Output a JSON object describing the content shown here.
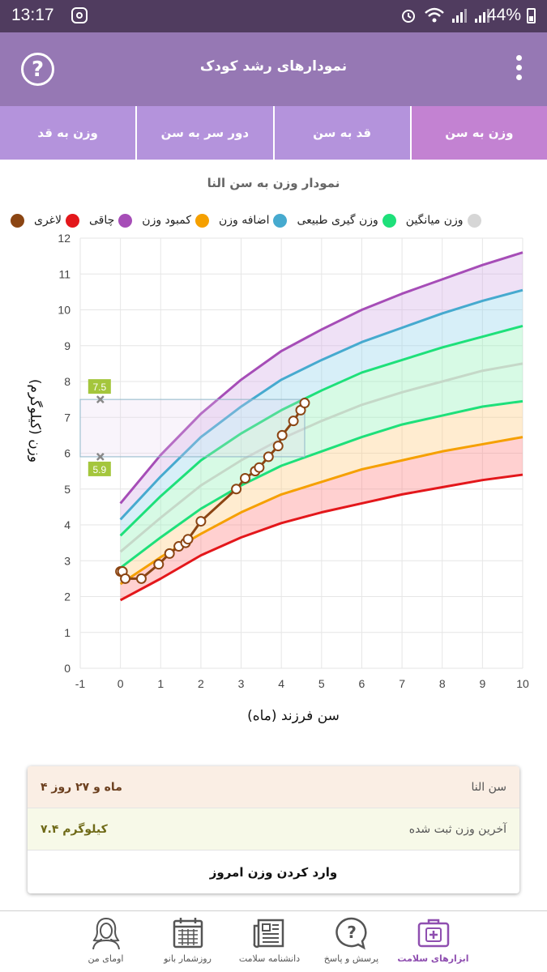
{
  "status_bar": {
    "time": "13:17",
    "battery": "44%"
  },
  "app_bar": {
    "title": "نمودارهای رشد کودک",
    "help_icon": "question-circle-icon",
    "menu_icon": "more-vert-icon"
  },
  "tabs": [
    {
      "label": "وزن به سن",
      "active": true
    },
    {
      "label": "قد به سن",
      "active": false
    },
    {
      "label": "دور سر به سن",
      "active": false
    },
    {
      "label": "وزن به قد",
      "active": false
    }
  ],
  "chart_title": "نمودار وزن به سن النا",
  "legend": [
    {
      "label": "",
      "color": "#8b4513"
    },
    {
      "label": "لاغری",
      "color": "#e3171b"
    },
    {
      "label": "چاقی",
      "color": "#a64db7"
    },
    {
      "label": "کمبود وزن",
      "color": "#f5a000"
    },
    {
      "label": "اضافه وزن",
      "color": "#46aacf"
    },
    {
      "label": "وزن گیری طبیعی",
      "color": "#1ee07a"
    },
    {
      "label": "وزن میانگین",
      "color": "#d6d6d6"
    }
  ],
  "chart_data": {
    "type": "line",
    "xlabel": "سن فرزند (ماه)",
    "ylabel": "وزن (کیلوگرم)",
    "xlim": [
      -1,
      10
    ],
    "ylim": [
      0,
      12
    ],
    "xticks": [
      -1,
      0,
      1,
      2,
      3,
      4,
      5,
      6,
      7,
      8,
      9,
      10
    ],
    "yticks": [
      0,
      1,
      2,
      3,
      4,
      5,
      6,
      7,
      8,
      9,
      10,
      11,
      12
    ],
    "grid": true,
    "x": [
      0,
      1,
      2,
      3,
      4,
      5,
      6,
      7,
      8,
      9,
      10
    ],
    "series": [
      {
        "name": "لاغری",
        "color": "#e3171b",
        "values": [
          1.9,
          2.5,
          3.15,
          3.65,
          4.05,
          4.35,
          4.6,
          4.85,
          5.05,
          5.25,
          5.4
        ]
      },
      {
        "name": "کمبود وزن",
        "color": "#f5a000",
        "values": [
          2.35,
          3.1,
          3.75,
          4.35,
          4.85,
          5.2,
          5.55,
          5.8,
          6.05,
          6.25,
          6.45
        ]
      },
      {
        "name": "وزن گیری طبیعی",
        "color": "#1ee07a",
        "values": [
          2.8,
          3.65,
          4.45,
          5.1,
          5.65,
          6.05,
          6.45,
          6.8,
          7.05,
          7.3,
          7.45
        ]
      },
      {
        "name": "وزن میانگین",
        "color": "#c5d8c8",
        "values": [
          3.25,
          4.2,
          5.1,
          5.8,
          6.4,
          6.9,
          7.35,
          7.7,
          8.0,
          8.3,
          8.5
        ]
      },
      {
        "name": "وزن گیری طبیعی",
        "color": "#1ee07a",
        "values": [
          3.7,
          4.8,
          5.8,
          6.55,
          7.2,
          7.75,
          8.25,
          8.6,
          8.95,
          9.25,
          9.55
        ]
      },
      {
        "name": "اضافه وزن",
        "color": "#46aacf",
        "values": [
          4.15,
          5.35,
          6.45,
          7.3,
          8.05,
          8.6,
          9.1,
          9.5,
          9.9,
          10.25,
          10.55
        ]
      },
      {
        "name": "چاقی",
        "color": "#a64db7",
        "values": [
          4.6,
          5.95,
          7.1,
          8.05,
          8.85,
          9.45,
          10.0,
          10.45,
          10.85,
          11.25,
          11.6
        ]
      }
    ],
    "child_points": [
      [
        0,
        2.7
      ],
      [
        0.05,
        2.7
      ],
      [
        0.12,
        2.5
      ],
      [
        0.52,
        2.5
      ],
      [
        0.95,
        2.9
      ],
      [
        1.22,
        3.2
      ],
      [
        1.45,
        3.4
      ],
      [
        1.62,
        3.5
      ],
      [
        1.68,
        3.6
      ],
      [
        2.0,
        4.1
      ],
      [
        2.88,
        5.0
      ],
      [
        3.1,
        5.3
      ],
      [
        3.35,
        5.5
      ],
      [
        3.45,
        5.6
      ],
      [
        3.68,
        5.9
      ],
      [
        3.92,
        6.2
      ],
      [
        4.02,
        6.5
      ],
      [
        4.3,
        6.9
      ],
      [
        4.48,
        7.2
      ],
      [
        4.58,
        7.4
      ]
    ],
    "child_color": "#8b4513",
    "range_box": {
      "x": [
        -1,
        4.58
      ],
      "y": [
        5.9,
        7.5
      ],
      "labels": [
        "7.5",
        "5.9"
      ]
    }
  },
  "summary": {
    "age_label": "سن النا",
    "age_value": "۴ ماه و ۲۷ روز",
    "weight_label": "آخرین وزن ثبت شده",
    "weight_value": "۷.۴ کیلوگرم",
    "action": "وارد کردن وزن امروز"
  },
  "bottom_nav": [
    {
      "label": "ابزارهای سلامت",
      "icon": "medical-kit-icon",
      "active": true
    },
    {
      "label": "پرسش و پاسخ",
      "icon": "question-bubble-icon",
      "active": false
    },
    {
      "label": "دانشنامه سلامت",
      "icon": "newspaper-icon",
      "active": false
    },
    {
      "label": "روزشمار بانو",
      "icon": "calendar-icon",
      "active": false
    },
    {
      "label": "اومای من",
      "icon": "woman-avatar-icon",
      "active": false
    }
  ]
}
